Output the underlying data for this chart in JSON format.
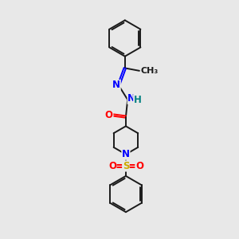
{
  "background_color": "#e8e8e8",
  "bond_color": "#1a1a1a",
  "atom_colors": {
    "N": "#0000ff",
    "O": "#ff0000",
    "S": "#ccaa00",
    "H": "#008080",
    "C": "#1a1a1a"
  },
  "figsize": [
    3.0,
    3.0
  ],
  "dpi": 100,
  "lw": 1.4,
  "fs": 8.5
}
